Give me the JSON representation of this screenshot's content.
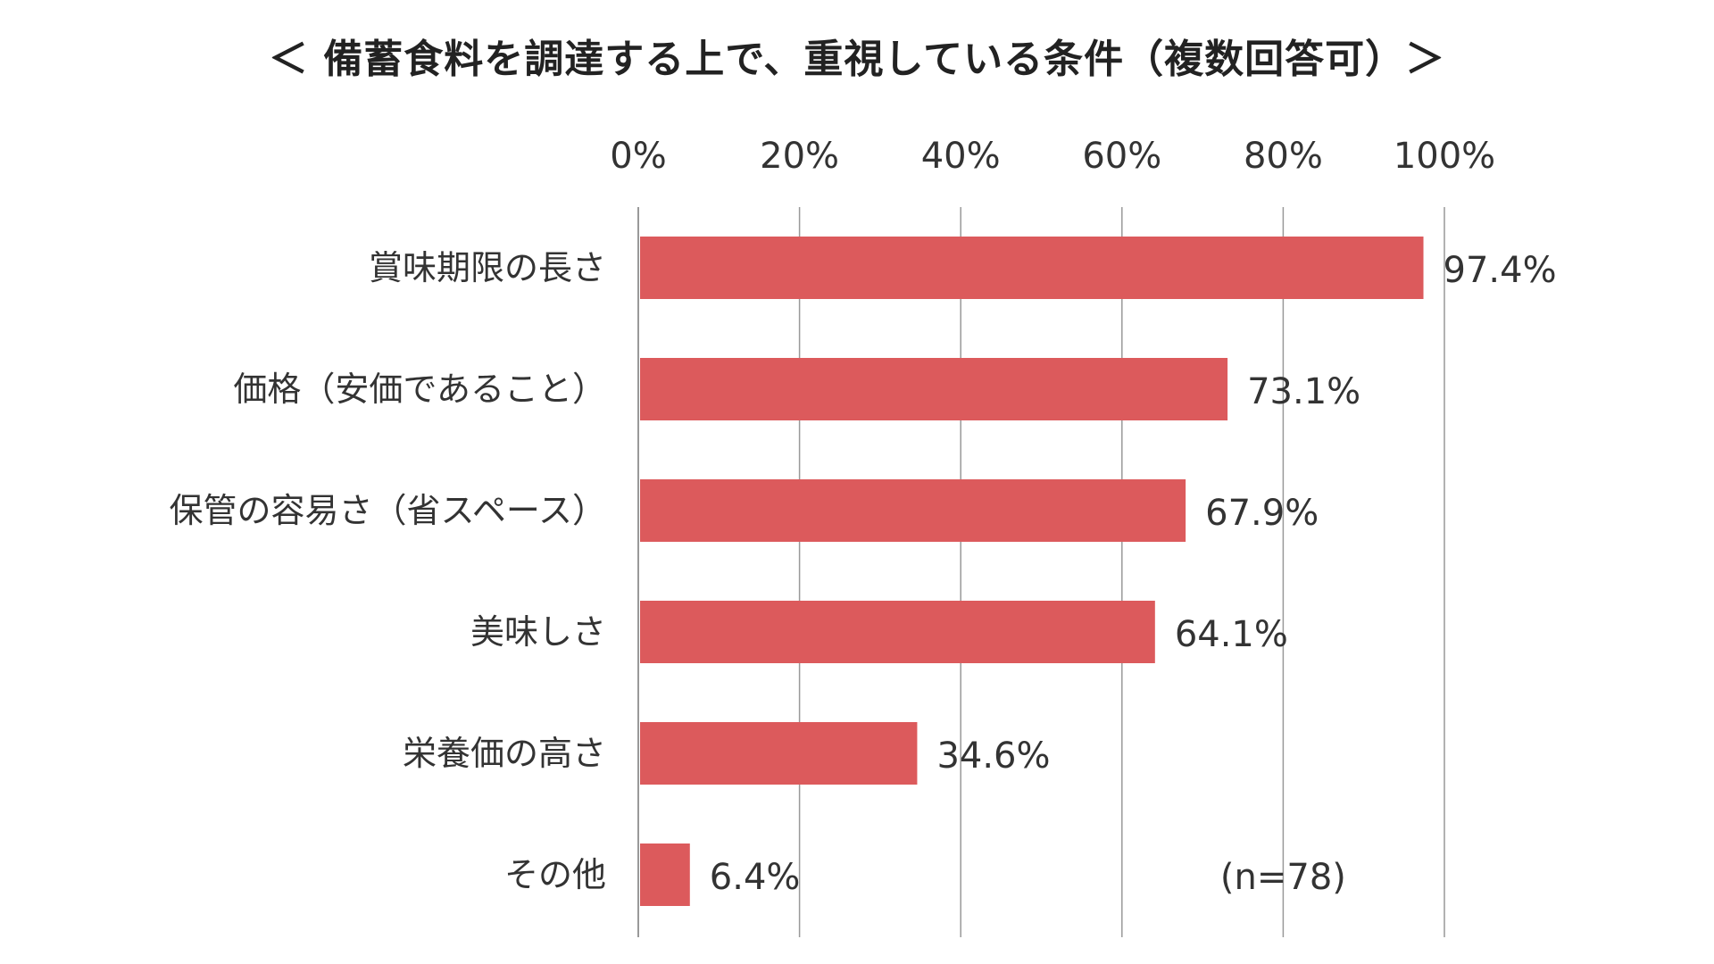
{
  "chart_data": {
    "type": "bar",
    "orientation": "horizontal",
    "title": "＜ 備蓄食料を調達する上で、重視している条件（複数回答可）＞",
    "categories": [
      "賞味期限の長さ",
      "価格（安価であること）",
      "保管の容易さ（省スペース）",
      "美味しさ",
      "栄養価の高さ",
      "その他"
    ],
    "values": [
      97.4,
      73.1,
      67.9,
      64.1,
      34.6,
      6.4
    ],
    "value_labels": [
      "97.4%",
      "73.1%",
      "67.9%",
      "64.1%",
      "34.6%",
      "6.4%"
    ],
    "xlim": [
      0,
      100
    ],
    "x_ticks": [
      0,
      20,
      40,
      60,
      80,
      100
    ],
    "x_tick_labels": [
      "0%",
      "20%",
      "40%",
      "60%",
      "80%",
      "100%"
    ],
    "axis_position": "top",
    "grid": true,
    "legend": "none",
    "annotation": "(n=78)",
    "bar_color": "#dc5a5c",
    "grid_color": "#999999"
  }
}
